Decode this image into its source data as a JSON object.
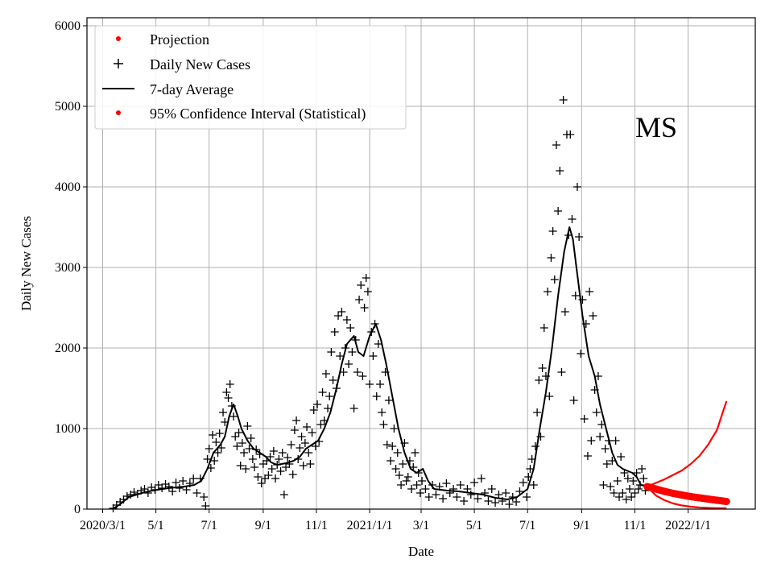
{
  "chart_data": {
    "type": "scatter",
    "title": "",
    "annotation": "MS",
    "xlabel": "Date",
    "ylabel": "Daily New Cases",
    "x_unit": "days since 2020/3/1",
    "xlim": [
      -18,
      748
    ],
    "ylim": [
      0,
      6100
    ],
    "grid": true,
    "legend_placement": "top-left",
    "x_ticks": [
      {
        "day": 0,
        "label": "2020/3/1"
      },
      {
        "day": 61,
        "label": "5/1"
      },
      {
        "day": 122,
        "label": "7/1"
      },
      {
        "day": 184,
        "label": "9/1"
      },
      {
        "day": 245,
        "label": "11/1"
      },
      {
        "day": 306,
        "label": "2021/1/1"
      },
      {
        "day": 365,
        "label": "3/1"
      },
      {
        "day": 426,
        "label": "5/1"
      },
      {
        "day": 487,
        "label": "7/1"
      },
      {
        "day": 549,
        "label": "9/1"
      },
      {
        "day": 610,
        "label": "11/1"
      },
      {
        "day": 671,
        "label": "2022/1/1"
      }
    ],
    "y_ticks": [
      0,
      1000,
      2000,
      3000,
      4000,
      5000,
      6000
    ],
    "legend": [
      "Projection",
      "Daily New Cases",
      "7-day Average",
      "95% Confidence Interval (Statistical)"
    ],
    "colors": {
      "projection": "#ff0000",
      "daily": "#000000",
      "average": "#000000",
      "ci": "#ff0000"
    },
    "series": {
      "average": [
        [
          11,
          0
        ],
        [
          20,
          60
        ],
        [
          30,
          150
        ],
        [
          45,
          200
        ],
        [
          57,
          230
        ],
        [
          75,
          260
        ],
        [
          94,
          280
        ],
        [
          105,
          300
        ],
        [
          113,
          350
        ],
        [
          120,
          500
        ],
        [
          127,
          700
        ],
        [
          135,
          800
        ],
        [
          140,
          900
        ],
        [
          145,
          1150
        ],
        [
          150,
          1300
        ],
        [
          155,
          1150
        ],
        [
          159,
          1000
        ],
        [
          166,
          850
        ],
        [
          173,
          750
        ],
        [
          180,
          700
        ],
        [
          187,
          650
        ],
        [
          193,
          580
        ],
        [
          200,
          550
        ],
        [
          210,
          570
        ],
        [
          219,
          600
        ],
        [
          226,
          650
        ],
        [
          233,
          750
        ],
        [
          240,
          800
        ],
        [
          247,
          850
        ],
        [
          254,
          1000
        ],
        [
          261,
          1200
        ],
        [
          268,
          1500
        ],
        [
          274,
          1800
        ],
        [
          280,
          2050
        ],
        [
          288,
          2150
        ],
        [
          293,
          1950
        ],
        [
          299,
          1900
        ],
        [
          306,
          2150
        ],
        [
          313,
          2300
        ],
        [
          319,
          2100
        ],
        [
          325,
          1800
        ],
        [
          332,
          1400
        ],
        [
          339,
          1000
        ],
        [
          346,
          700
        ],
        [
          353,
          500
        ],
        [
          360,
          450
        ],
        [
          367,
          500
        ],
        [
          373,
          350
        ],
        [
          380,
          250
        ],
        [
          395,
          230
        ],
        [
          408,
          220
        ],
        [
          422,
          200
        ],
        [
          436,
          180
        ],
        [
          450,
          140
        ],
        [
          464,
          120
        ],
        [
          475,
          150
        ],
        [
          487,
          250
        ],
        [
          494,
          500
        ],
        [
          501,
          1000
        ],
        [
          508,
          1450
        ],
        [
          515,
          2000
        ],
        [
          522,
          2650
        ],
        [
          529,
          3200
        ],
        [
          535,
          3500
        ],
        [
          539,
          3350
        ],
        [
          543,
          3000
        ],
        [
          550,
          2400
        ],
        [
          557,
          1900
        ],
        [
          564,
          1650
        ],
        [
          570,
          1300
        ],
        [
          577,
          1000
        ],
        [
          584,
          700
        ],
        [
          590,
          550
        ],
        [
          596,
          500
        ],
        [
          607,
          450
        ],
        [
          612,
          400
        ],
        [
          617,
          300
        ],
        [
          624,
          280
        ]
      ],
      "daily": [
        [
          12,
          10
        ],
        [
          16,
          50
        ],
        [
          20,
          90
        ],
        [
          24,
          120
        ],
        [
          28,
          160
        ],
        [
          32,
          180
        ],
        [
          36,
          210
        ],
        [
          40,
          190
        ],
        [
          44,
          230
        ],
        [
          48,
          250
        ],
        [
          52,
          200
        ],
        [
          56,
          270
        ],
        [
          60,
          240
        ],
        [
          64,
          300
        ],
        [
          68,
          260
        ],
        [
          72,
          310
        ],
        [
          76,
          280
        ],
        [
          80,
          220
        ],
        [
          84,
          330
        ],
        [
          88,
          260
        ],
        [
          92,
          350
        ],
        [
          96,
          240
        ],
        [
          100,
          320
        ],
        [
          104,
          380
        ],
        [
          108,
          200
        ],
        [
          112,
          380
        ],
        [
          116,
          150
        ],
        [
          118,
          40
        ],
        [
          120,
          620
        ],
        [
          122,
          750
        ],
        [
          124,
          510
        ],
        [
          126,
          920
        ],
        [
          128,
          600
        ],
        [
          130,
          830
        ],
        [
          132,
          700
        ],
        [
          134,
          940
        ],
        [
          136,
          760
        ],
        [
          138,
          1200
        ],
        [
          140,
          1080
        ],
        [
          142,
          1450
        ],
        [
          144,
          1380
        ],
        [
          146,
          1550
        ],
        [
          148,
          1280
        ],
        [
          150,
          1150
        ],
        [
          152,
          900
        ],
        [
          154,
          780
        ],
        [
          156,
          950
        ],
        [
          158,
          540
        ],
        [
          160,
          820
        ],
        [
          162,
          700
        ],
        [
          164,
          500
        ],
        [
          166,
          1030
        ],
        [
          168,
          750
        ],
        [
          170,
          880
        ],
        [
          172,
          620
        ],
        [
          174,
          520
        ],
        [
          176,
          740
        ],
        [
          178,
          400
        ],
        [
          180,
          680
        ],
        [
          182,
          320
        ],
        [
          184,
          560
        ],
        [
          186,
          380
        ],
        [
          188,
          600
        ],
        [
          190,
          420
        ],
        [
          192,
          650
        ],
        [
          194,
          500
        ],
        [
          196,
          720
        ],
        [
          198,
          380
        ],
        [
          200,
          550
        ],
        [
          202,
          620
        ],
        [
          204,
          470
        ],
        [
          206,
          700
        ],
        [
          208,
          180
        ],
        [
          210,
          520
        ],
        [
          212,
          640
        ],
        [
          214,
          560
        ],
        [
          216,
          800
        ],
        [
          218,
          430
        ],
        [
          220,
          980
        ],
        [
          222,
          1100
        ],
        [
          224,
          620
        ],
        [
          226,
          760
        ],
        [
          228,
          900
        ],
        [
          230,
          540
        ],
        [
          232,
          820
        ],
        [
          234,
          1020
        ],
        [
          236,
          700
        ],
        [
          238,
          560
        ],
        [
          240,
          950
        ],
        [
          242,
          1230
        ],
        [
          244,
          780
        ],
        [
          246,
          1300
        ],
        [
          248,
          840
        ],
        [
          250,
          1050
        ],
        [
          252,
          1450
        ],
        [
          254,
          1100
        ],
        [
          256,
          1680
        ],
        [
          258,
          1250
        ],
        [
          260,
          1400
        ],
        [
          262,
          1950
        ],
        [
          264,
          1600
        ],
        [
          266,
          2200
        ],
        [
          268,
          1500
        ],
        [
          270,
          2400
        ],
        [
          272,
          1900
        ],
        [
          274,
          2450
        ],
        [
          276,
          1700
        ],
        [
          278,
          2000
        ],
        [
          280,
          2350
        ],
        [
          282,
          1800
        ],
        [
          284,
          2250
        ],
        [
          286,
          1950
        ],
        [
          288,
          1250
        ],
        [
          290,
          2100
        ],
        [
          292,
          1700
        ],
        [
          294,
          2600
        ],
        [
          296,
          2780
        ],
        [
          298,
          1650
        ],
        [
          300,
          2500
        ],
        [
          302,
          2870
        ],
        [
          304,
          2700
        ],
        [
          306,
          1550
        ],
        [
          308,
          2200
        ],
        [
          310,
          1900
        ],
        [
          312,
          2300
        ],
        [
          314,
          1400
        ],
        [
          316,
          2050
        ],
        [
          318,
          1550
        ],
        [
          320,
          1200
        ],
        [
          322,
          1050
        ],
        [
          324,
          1700
        ],
        [
          326,
          800
        ],
        [
          328,
          1350
        ],
        [
          330,
          600
        ],
        [
          332,
          780
        ],
        [
          334,
          1000
        ],
        [
          336,
          500
        ],
        [
          338,
          700
        ],
        [
          340,
          420
        ],
        [
          342,
          300
        ],
        [
          344,
          560
        ],
        [
          346,
          820
        ],
        [
          348,
          350
        ],
        [
          350,
          400
        ],
        [
          352,
          600
        ],
        [
          354,
          250
        ],
        [
          356,
          520
        ],
        [
          358,
          700
        ],
        [
          360,
          300
        ],
        [
          362,
          450
        ],
        [
          364,
          200
        ],
        [
          366,
          350
        ],
        [
          370,
          250
        ],
        [
          374,
          150
        ],
        [
          378,
          300
        ],
        [
          382,
          180
        ],
        [
          386,
          280
        ],
        [
          390,
          130
        ],
        [
          394,
          320
        ],
        [
          398,
          200
        ],
        [
          402,
          250
        ],
        [
          406,
          150
        ],
        [
          410,
          300
        ],
        [
          414,
          100
        ],
        [
          418,
          250
        ],
        [
          422,
          180
        ],
        [
          426,
          330
        ],
        [
          430,
          130
        ],
        [
          434,
          380
        ],
        [
          438,
          200
        ],
        [
          442,
          100
        ],
        [
          446,
          250
        ],
        [
          450,
          80
        ],
        [
          454,
          180
        ],
        [
          458,
          100
        ],
        [
          462,
          200
        ],
        [
          466,
          60
        ],
        [
          470,
          150
        ],
        [
          474,
          90
        ],
        [
          478,
          220
        ],
        [
          482,
          330
        ],
        [
          486,
          150
        ],
        [
          488,
          400
        ],
        [
          490,
          500
        ],
        [
          492,
          620
        ],
        [
          494,
          300
        ],
        [
          496,
          780
        ],
        [
          498,
          1200
        ],
        [
          500,
          1600
        ],
        [
          502,
          900
        ],
        [
          504,
          1750
        ],
        [
          506,
          2250
        ],
        [
          508,
          1650
        ],
        [
          510,
          2700
        ],
        [
          512,
          1400
        ],
        [
          514,
          3120
        ],
        [
          516,
          3450
        ],
        [
          518,
          2850
        ],
        [
          520,
          4520
        ],
        [
          522,
          3700
        ],
        [
          524,
          4200
        ],
        [
          526,
          1700
        ],
        [
          528,
          5080
        ],
        [
          530,
          2450
        ],
        [
          532,
          4650
        ],
        [
          534,
          3400
        ],
        [
          536,
          4650
        ],
        [
          538,
          3600
        ],
        [
          540,
          1350
        ],
        [
          542,
          2650
        ],
        [
          544,
          4000
        ],
        [
          546,
          3380
        ],
        [
          548,
          1930
        ],
        [
          550,
          2600
        ],
        [
          552,
          1120
        ],
        [
          554,
          2300
        ],
        [
          556,
          660
        ],
        [
          558,
          2700
        ],
        [
          560,
          850
        ],
        [
          562,
          2400
        ],
        [
          564,
          1480
        ],
        [
          566,
          1200
        ],
        [
          568,
          1650
        ],
        [
          570,
          900
        ],
        [
          572,
          1050
        ],
        [
          574,
          300
        ],
        [
          576,
          750
        ],
        [
          578,
          560
        ],
        [
          580,
          850
        ],
        [
          582,
          280
        ],
        [
          584,
          600
        ],
        [
          586,
          200
        ],
        [
          588,
          850
        ],
        [
          590,
          350
        ],
        [
          592,
          150
        ],
        [
          594,
          650
        ],
        [
          596,
          200
        ],
        [
          598,
          450
        ],
        [
          600,
          120
        ],
        [
          602,
          380
        ],
        [
          604,
          250
        ],
        [
          606,
          150
        ],
        [
          608,
          350
        ],
        [
          610,
          200
        ],
        [
          612,
          450
        ],
        [
          614,
          250
        ],
        [
          616,
          300
        ],
        [
          618,
          500
        ],
        [
          620,
          380
        ],
        [
          622,
          230
        ]
      ],
      "projection": [
        [
          624,
          280
        ],
        [
          634,
          250
        ],
        [
          644,
          220
        ],
        [
          654,
          195
        ],
        [
          664,
          175
        ],
        [
          674,
          155
        ],
        [
          684,
          140
        ],
        [
          694,
          125
        ],
        [
          704,
          110
        ],
        [
          715,
          95
        ]
      ],
      "ci_upper": [
        [
          624,
          280
        ],
        [
          644,
          370
        ],
        [
          664,
          480
        ],
        [
          674,
          560
        ],
        [
          684,
          660
        ],
        [
          694,
          800
        ],
        [
          704,
          980
        ],
        [
          715,
          1340
        ]
      ],
      "ci_lower": [
        [
          624,
          280
        ],
        [
          634,
          170
        ],
        [
          644,
          110
        ],
        [
          654,
          70
        ],
        [
          664,
          45
        ],
        [
          674,
          30
        ],
        [
          684,
          20
        ],
        [
          694,
          15
        ],
        [
          704,
          12
        ],
        [
          715,
          10
        ]
      ]
    }
  }
}
